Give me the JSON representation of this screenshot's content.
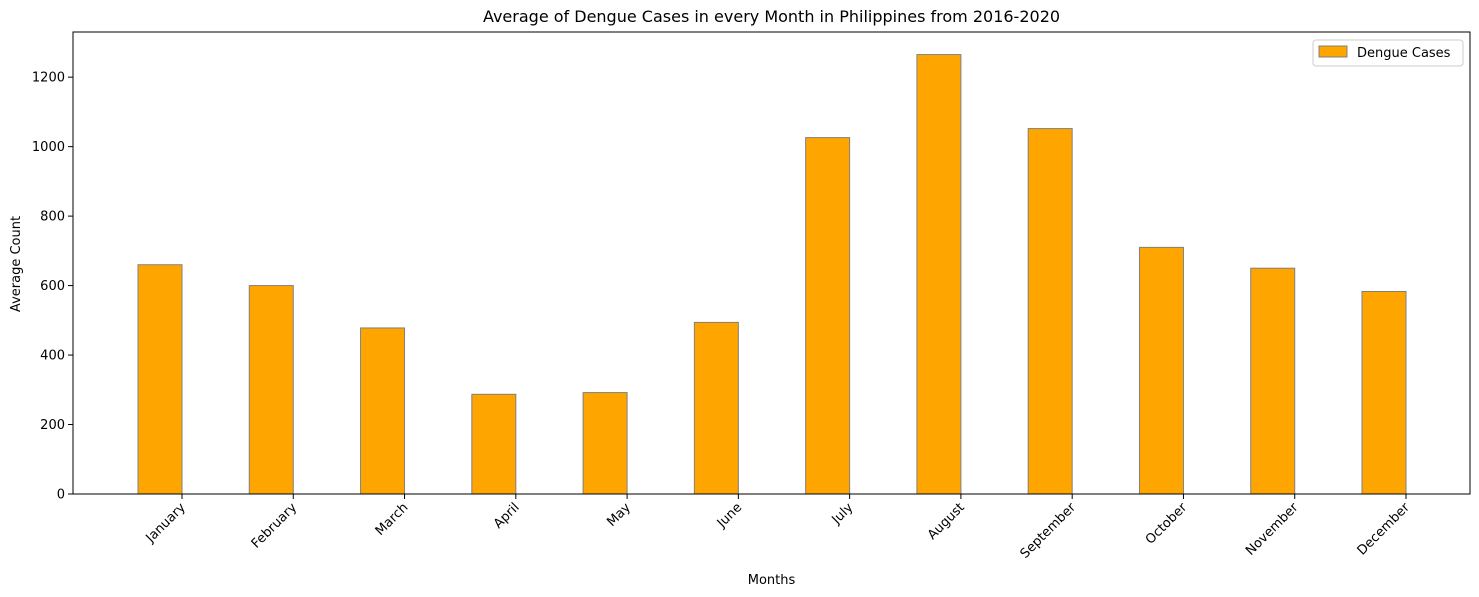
{
  "chart_data": {
    "type": "bar",
    "title": "Average of Dengue Cases in every Month in Philippines from 2016-2020",
    "xlabel": "Months",
    "ylabel": "Average Count",
    "categories": [
      "January",
      "February",
      "March",
      "April",
      "May",
      "June",
      "July",
      "August",
      "September",
      "October",
      "November",
      "December"
    ],
    "series": [
      {
        "name": "Dengue Cases",
        "values": [
          660,
          600,
          478,
          287,
          292,
          494,
          1026,
          1265,
          1052,
          710,
          650,
          583
        ]
      }
    ],
    "ylim": [
      0,
      1330
    ],
    "yticks": [
      0,
      200,
      400,
      600,
      800,
      1000,
      1200
    ],
    "grid": false,
    "legend_position": "top-right",
    "colors": {
      "bar_fill": "#FFA500",
      "bar_edge": "#808080",
      "axis": "#000000"
    }
  }
}
